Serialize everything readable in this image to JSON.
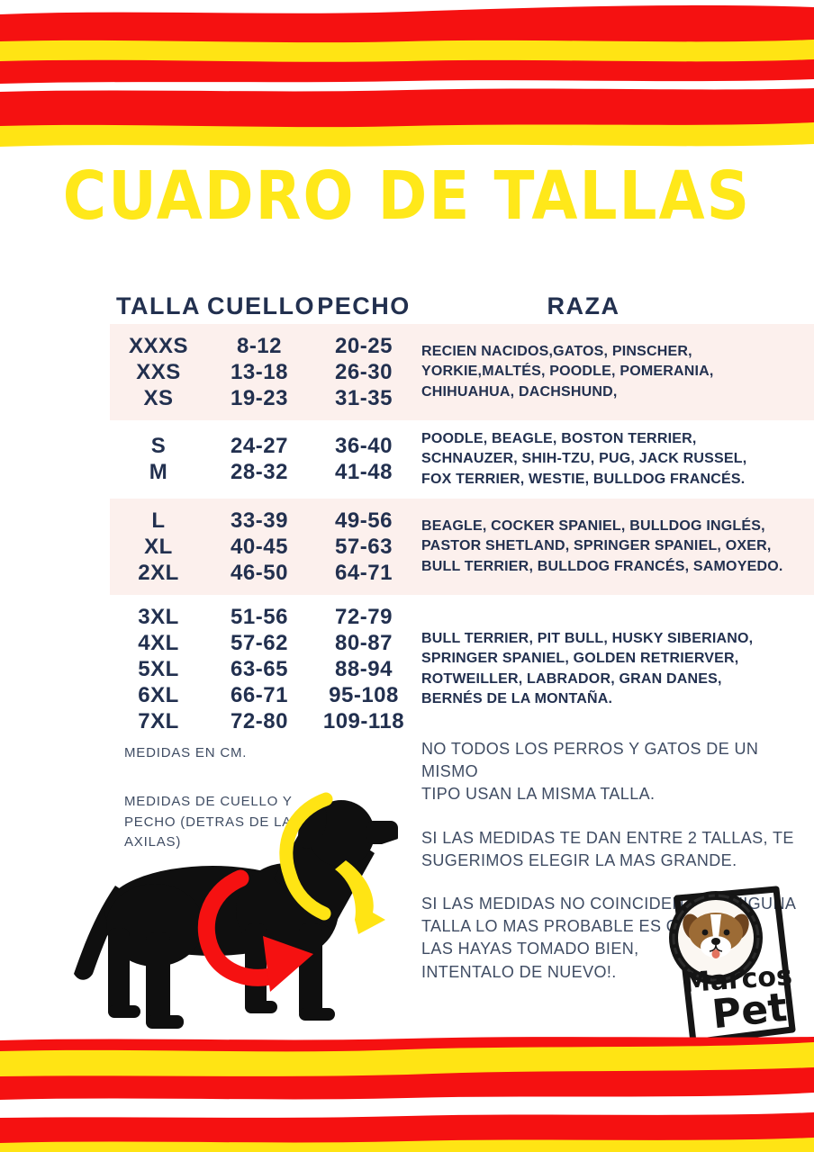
{
  "page": {
    "title": "CUADRO DE TALLAS"
  },
  "colors": {
    "red": "#f51111",
    "yellow": "#ffe414",
    "title_yellow": "#ffe81a",
    "navy": "#22304f",
    "slate": "#3f4c63",
    "pink": "#fcf0ed",
    "black": "#0f0f0f"
  },
  "table": {
    "headers": [
      "TALLA",
      "CUELLO",
      "PECHO",
      "RAZA"
    ],
    "groups": [
      {
        "highlight": true,
        "rows": [
          [
            "XXXS",
            "8-12",
            "20-25"
          ],
          [
            "XXS",
            "13-18",
            "26-30"
          ],
          [
            "XS",
            "19-23",
            "31-35"
          ]
        ],
        "raza": [
          "RECIEN NACIDOS,GATOS, PINSCHER,",
          "YORKIE,MALTÉS, POODLE, POMERANIA,",
          "CHIHUAHUA, DACHSHUND,"
        ]
      },
      {
        "highlight": false,
        "rows": [
          [
            "S",
            "24-27",
            "36-40"
          ],
          [
            "M",
            "28-32",
            "41-48"
          ]
        ],
        "raza": [
          "POODLE, BEAGLE, BOSTON TERRIER,",
          "SCHNAUZER, SHIH-TZU, PUG, JACK RUSSEL,",
          "FOX TERRIER, WESTIE, BULLDOG FRANCÉS."
        ]
      },
      {
        "highlight": true,
        "rows": [
          [
            "L",
            "33-39",
            "49-56"
          ],
          [
            "XL",
            "40-45",
            "57-63"
          ],
          [
            "2XL",
            "46-50",
            "64-71"
          ]
        ],
        "raza": [
          "BEAGLE, COCKER SPANIEL, BULLDOG INGLÉS,",
          "PASTOR SHETLAND, SPRINGER SPANIEL, OXER,",
          "BULL TERRIER, BULLDOG FRANCÉS, SAMOYEDO."
        ]
      },
      {
        "highlight": false,
        "rows": [
          [
            "3XL",
            "51-56",
            "72-79"
          ],
          [
            "4XL",
            "57-62",
            "80-87"
          ],
          [
            "5XL",
            "63-65",
            "88-94"
          ],
          [
            "6XL",
            "66-71",
            "95-108"
          ],
          [
            "7XL",
            "72-80",
            "109-118"
          ]
        ],
        "raza": [
          "BULL TERRIER, PIT BULL, HUSKY SIBERIANO,",
          "SPRINGER SPANIEL, GOLDEN RETRIERVER,",
          "ROTWEILLER, LABRADOR, GRAN DANES,",
          "BERNÉS DE LA MONTAÑA."
        ]
      }
    ]
  },
  "notes": {
    "units": "MEDIDAS EN CM.",
    "measure": [
      "MEDIDAS DE CUELLO Y",
      "PECHO (DETRAS DE LAS",
      "AXILAS)"
    ]
  },
  "advice": {
    "paragraphs": [
      [
        "NO TODOS LOS PERROS Y GATOS DE UN MISMO",
        "TIPO USAN LA MISMA TALLA."
      ],
      [
        "SI LAS MEDIDAS TE DAN ENTRE 2 TALLAS, TE",
        "SUGERIMOS ELEGIR LA MAS GRANDE."
      ],
      [
        "SI LAS MEDIDAS NO COINCIDEN CON NIGUNA",
        "TALLA LO MAS PROBABLE ES QUE NO",
        "LAS HAYAS TOMADO BIEN,",
        "INTENTALO DE NUEVO!."
      ]
    ]
  },
  "logo": {
    "name_top": "Marcos",
    "name_bottom": "Pet"
  },
  "graphics": {
    "dog_illustration": "dog-side-silhouette-with-yellow-neck-arrow-and-red-chest-arrow",
    "logo_frame": "hand-drawn-photo-frame-with-puppy-photo",
    "stripes": "painted-red-and-yellow-brush-stripes"
  }
}
